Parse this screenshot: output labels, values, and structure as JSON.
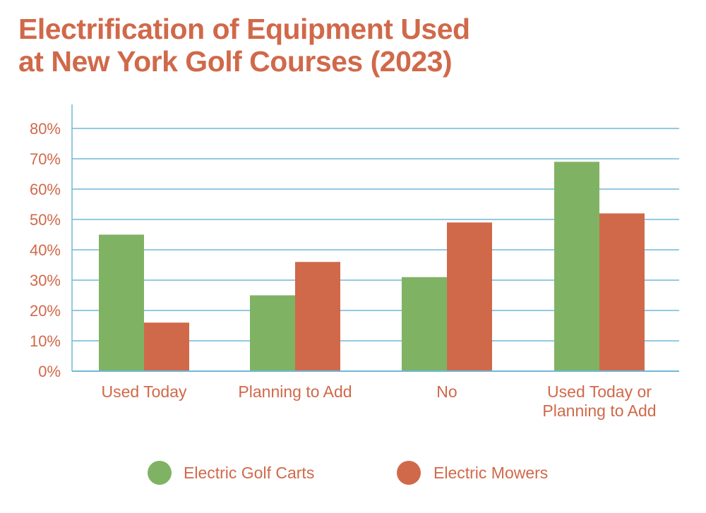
{
  "title_lines": [
    "Electrification of Equipment Used",
    "at New York Golf Courses (2023)"
  ],
  "colors": {
    "title": "#d0694a",
    "grid": "#6fb8d8",
    "carts": "#80b264",
    "mowers": "#d0694a"
  },
  "chart_data": {
    "type": "bar",
    "title": "Electrification of Equipment Used at New York Golf Courses (2023)",
    "categories": [
      [
        "Used Today"
      ],
      [
        "Planning to Add"
      ],
      [
        "No"
      ],
      [
        "Used Today or",
        "Planning to Add"
      ]
    ],
    "series": [
      {
        "name": "Electric Golf Carts",
        "values": [
          45,
          25,
          31,
          69
        ],
        "color": "#80b264"
      },
      {
        "name": "Electric Mowers",
        "values": [
          16,
          36,
          49,
          52
        ],
        "color": "#d0694a"
      }
    ],
    "ylim": [
      0,
      80
    ],
    "yticks": [
      0,
      10,
      20,
      30,
      40,
      50,
      60,
      70,
      80
    ],
    "ytick_labels": [
      "0%",
      "10%",
      "20%",
      "30%",
      "40%",
      "50%",
      "60%",
      "70%",
      "80%"
    ],
    "grid": true,
    "legend": "bottom-center"
  }
}
